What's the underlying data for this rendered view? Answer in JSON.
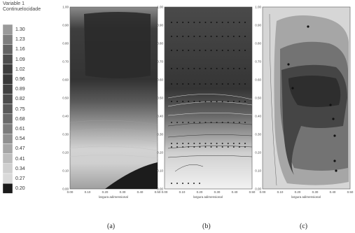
{
  "legend": {
    "title_line1": "Variable 1",
    "title_line2": "Continuelocidade",
    "values": [
      "1.30",
      "1.23",
      "1.16",
      "1.09",
      "1.02",
      "0.96",
      "0.89",
      "0.82",
      "0.75",
      "0.68",
      "0.61",
      "0.54",
      "0.47",
      "0.41",
      "0.34",
      "0.27",
      "0.20"
    ],
    "colors": [
      "#9a9a9a",
      "#7e7e7e",
      "#646464",
      "#4e4e4e",
      "#3e3e3e",
      "#3a3a3a",
      "#424242",
      "#4d4d4d",
      "#5a5a5a",
      "#6a6a6a",
      "#7c7c7c",
      "#909090",
      "#a6a6a6",
      "#bdbdbd",
      "#cfcfcf",
      "#d9d9d9",
      "#1a1a1a"
    ]
  },
  "captions": [
    "(a)",
    "(b)",
    "(c)"
  ],
  "chart_data": [
    {
      "type": "heatmap",
      "panel": "(a)",
      "xlabel": "largura adimensional",
      "x_ticks": [
        "0.00",
        "0.10",
        "0.20",
        "0.30",
        "0.40",
        "0.50"
      ],
      "y_ticks": [
        "0.00",
        "0.10",
        "0.20",
        "0.30",
        "0.40",
        "0.50",
        "0.60",
        "0.70",
        "0.80",
        "0.90",
        "1.00"
      ],
      "xlim": [
        0,
        0.5
      ],
      "ylim": [
        0,
        1.0
      ]
    },
    {
      "type": "heatmap",
      "panel": "(b)",
      "xlabel": "largura adimensional",
      "x_ticks": [
        "0.00",
        "0.10",
        "0.20",
        "0.30",
        "0.40",
        "0.50"
      ],
      "y_ticks": [
        "0.00",
        "0.10",
        "0.20",
        "0.30",
        "0.40",
        "0.50",
        "0.60",
        "0.70",
        "0.80",
        "0.90",
        "1.00"
      ],
      "xlim": [
        0,
        0.5
      ],
      "ylim": [
        0,
        1.0
      ]
    },
    {
      "type": "heatmap",
      "panel": "(c)",
      "xlabel": "largura adimensional",
      "x_ticks": [
        "0.00",
        "0.10",
        "0.20",
        "0.30",
        "0.40",
        "0.50"
      ],
      "y_ticks": [
        "0.00",
        "0.10",
        "0.20",
        "0.30",
        "0.40",
        "0.50",
        "0.60",
        "0.70",
        "0.80",
        "0.90",
        "1.00"
      ],
      "xlim": [
        0,
        0.5
      ],
      "ylim": [
        0,
        1.0
      ]
    }
  ]
}
